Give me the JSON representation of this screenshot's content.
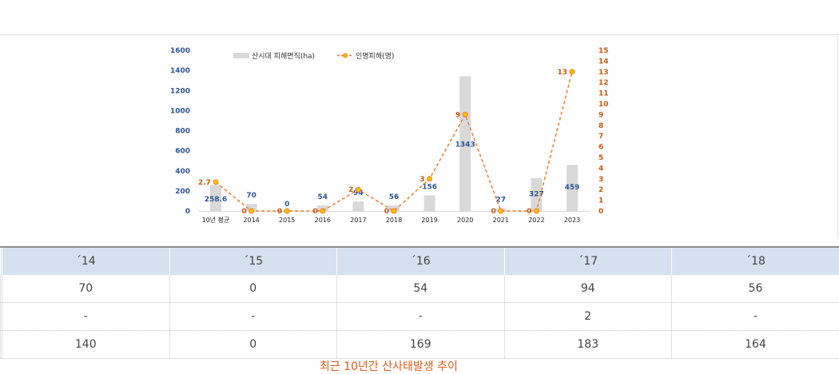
{
  "chart_data": {
    "type": "bar+line",
    "categories": [
      "10년 평균",
      "2014",
      "2015",
      "2016",
      "2017",
      "2018",
      "2019",
      "2020",
      "2021",
      "2022",
      "2023"
    ],
    "series": [
      {
        "name": "산시대 피해면직(ha)",
        "type": "bar",
        "axis": "left",
        "values": [
          258.6,
          70,
          0,
          54,
          94,
          56,
          156,
          1343,
          27,
          327,
          459
        ],
        "labels": [
          "258.6",
          "70",
          "0",
          "54",
          "94",
          "56",
          "156",
          "1343",
          "27",
          "327",
          "459"
        ]
      },
      {
        "name": "인명피해(명)",
        "type": "line",
        "axis": "right",
        "values": [
          2.7,
          0,
          0,
          0,
          2,
          0,
          3,
          9,
          0,
          0,
          13
        ],
        "labels": [
          "2.7",
          "0",
          "0",
          "0",
          "2",
          "0",
          "3",
          "9",
          "0",
          "0",
          "13"
        ]
      }
    ],
    "y_left": {
      "ticks": [
        "0",
        "200",
        "400",
        "600",
        "800",
        "1000",
        "1200",
        "1400",
        "1600"
      ],
      "min": 0,
      "max": 1600
    },
    "y_right": {
      "ticks": [
        "0",
        "1",
        "2",
        "3",
        "4",
        "5",
        "6",
        "7",
        "8",
        "9",
        "10",
        "11",
        "12",
        "13",
        "14",
        "15"
      ],
      "min": 0,
      "max": 15
    },
    "legend_position": "top",
    "colors": {
      "bar": "#d9d9d9",
      "line": "#ed7d31",
      "marker": "#ffc000",
      "left_axis": "#2f5597",
      "right_axis": "#c55a11"
    }
  },
  "table": {
    "headers": [
      "´14",
      "´15",
      "´16",
      "´17",
      "´18"
    ],
    "rows": [
      [
        "70",
        "0",
        "54",
        "94",
        "56"
      ],
      [
        "-",
        "-",
        "-",
        "2",
        "-"
      ],
      [
        "140",
        "0",
        "169",
        "183",
        "164"
      ]
    ]
  },
  "caption": "최근 10년간 산사태발생 추이"
}
